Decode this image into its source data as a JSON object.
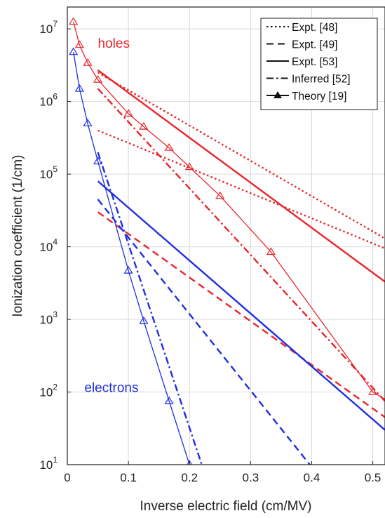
{
  "chart_data": {
    "type": "line",
    "xlabel": "Inverse electric field (cm/MV)",
    "ylabel": "Ionization coefficient (1/cm)",
    "xlim": [
      0,
      0.52
    ],
    "ylim": [
      10,
      20000000
    ],
    "yscale": "log",
    "grid": true,
    "legend_position": "top-right",
    "x_ticks": [
      {
        "value": 0,
        "label": "0"
      },
      {
        "value": 0.1,
        "label": "0.1"
      },
      {
        "value": 0.2,
        "label": "0.2"
      },
      {
        "value": 0.3,
        "label": "0.3"
      },
      {
        "value": 0.4,
        "label": "0.4"
      },
      {
        "value": 0.5,
        "label": "0.5"
      }
    ],
    "y_ticks": [
      {
        "value": 10,
        "base": "10",
        "exp": "1"
      },
      {
        "value": 100,
        "base": "10",
        "exp": "2"
      },
      {
        "value": 1000,
        "base": "10",
        "exp": "3"
      },
      {
        "value": 10000,
        "base": "10",
        "exp": "4"
      },
      {
        "value": 100000,
        "base": "10",
        "exp": "5"
      },
      {
        "value": 1000000,
        "base": "10",
        "exp": "6"
      },
      {
        "value": 10000000,
        "base": "10",
        "exp": "7"
      }
    ],
    "legend": [
      {
        "label": "Expt. [48]",
        "style": "dotted"
      },
      {
        "label": "Expt. [49]",
        "style": "dashed"
      },
      {
        "label": "Expt. [53]",
        "style": "solid"
      },
      {
        "label": "Inferred [52]",
        "style": "dashdot"
      },
      {
        "label": "Theory [19]",
        "style": "solid-triangle"
      }
    ],
    "annotations": [
      {
        "text": "holes",
        "color": "#e8262b",
        "x": 0.05,
        "y": 5500000
      },
      {
        "text": "electrons",
        "color": "#1f2fe0",
        "x": 0.028,
        "y": 100
      }
    ],
    "colors": {
      "holes": "#e8262b",
      "electrons": "#1f2fe0"
    },
    "series": [
      {
        "group": "holes",
        "style": "dotted",
        "x": [
          0.05,
          0.52
        ],
        "y": [
          2500000,
          13000
        ]
      },
      {
        "group": "holes",
        "style": "dotted",
        "x": [
          0.05,
          0.52
        ],
        "y": [
          400000,
          9500
        ]
      },
      {
        "group": "holes",
        "style": "dashed",
        "x": [
          0.05,
          0.52
        ],
        "y": [
          30000,
          45
        ]
      },
      {
        "group": "holes",
        "style": "solid",
        "x": [
          0.05,
          0.52
        ],
        "y": [
          2700000,
          3300
        ]
      },
      {
        "group": "holes",
        "style": "dashdot",
        "x": [
          0.05,
          0.52
        ],
        "y": [
          1500000,
          75
        ]
      },
      {
        "group": "holes",
        "style": "solid-triangle",
        "x": [
          0.01,
          0.02,
          0.0333,
          0.05,
          0.1,
          0.125,
          0.1667,
          0.2,
          0.25,
          0.3333,
          0.5,
          0.52
        ],
        "y": [
          12500000,
          6000000,
          3400000,
          2000000,
          680000,
          450000,
          230000,
          125000,
          50000,
          8500,
          100,
          80
        ]
      },
      {
        "group": "electrons",
        "style": "dashed",
        "x": [
          0.05,
          0.397
        ],
        "y": [
          45000,
          10
        ]
      },
      {
        "group": "electrons",
        "style": "solid",
        "x": [
          0.05,
          0.52
        ],
        "y": [
          80000,
          30
        ]
      },
      {
        "group": "electrons",
        "style": "dashdot",
        "x": [
          0.05,
          0.22
        ],
        "y": [
          200000,
          10
        ]
      },
      {
        "group": "electrons",
        "style": "solid-triangle",
        "x": [
          0.01,
          0.02,
          0.0333,
          0.05,
          0.1,
          0.125,
          0.1667,
          0.2
        ],
        "y": [
          4800000,
          1500000,
          500000,
          150000,
          4700,
          950,
          75,
          10
        ]
      }
    ]
  }
}
